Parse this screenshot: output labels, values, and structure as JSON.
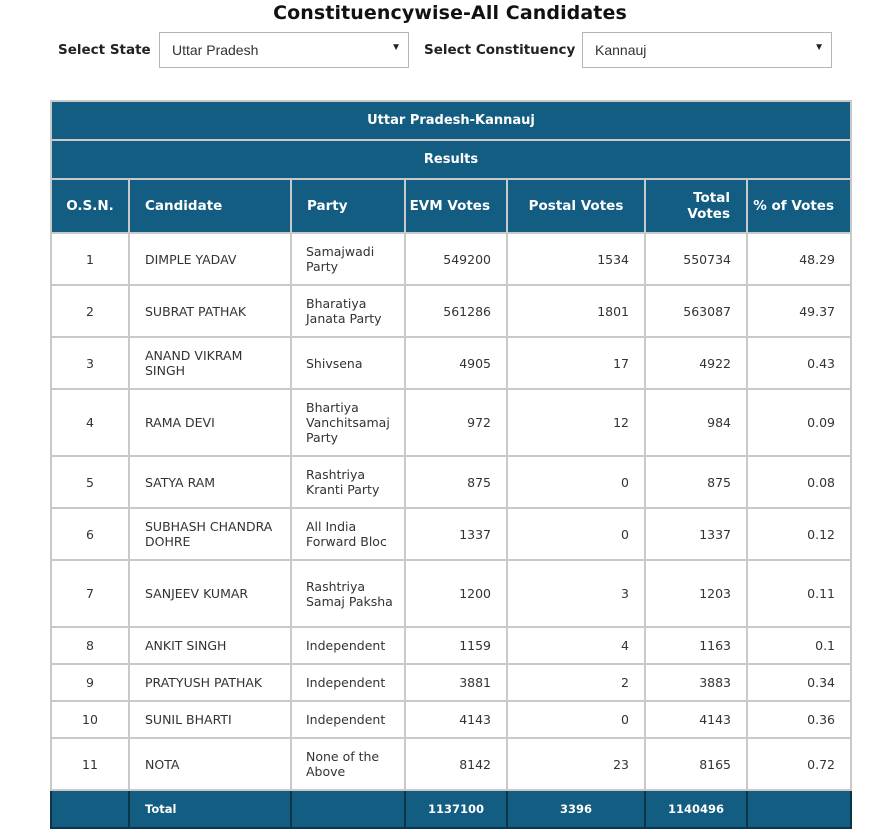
{
  "page": {
    "title": "Constituencywise-All Candidates"
  },
  "filters": {
    "state_label": "Select State",
    "state_value": "Uttar Pradesh",
    "constituency_label": "Select Constituency",
    "constituency_value": "Kannauj"
  },
  "table": {
    "title": "Uttar Pradesh-Kannauj",
    "subtitle": "Results",
    "headers": [
      "O.S.N.",
      "Candidate",
      "Party",
      "EVM Votes",
      "Postal Votes",
      "Total Votes",
      "% of Votes"
    ],
    "rows": [
      {
        "osn": "1",
        "candidate": "DIMPLE YADAV",
        "party": "Samajwadi Party",
        "evm": "549200",
        "postal": "1534",
        "total": "550734",
        "pct": "48.29"
      },
      {
        "osn": "2",
        "candidate": "SUBRAT PATHAK",
        "party": "Bharatiya Janata Party",
        "evm": "561286",
        "postal": "1801",
        "total": "563087",
        "pct": "49.37"
      },
      {
        "osn": "3",
        "candidate": "ANAND VIKRAM SINGH",
        "party": "Shivsena",
        "evm": "4905",
        "postal": "17",
        "total": "4922",
        "pct": "0.43"
      },
      {
        "osn": "4",
        "candidate": "RAMA DEVI",
        "party": "Bhartiya Vanchitsamaj Party",
        "evm": "972",
        "postal": "12",
        "total": "984",
        "pct": "0.09"
      },
      {
        "osn": "5",
        "candidate": "SATYA RAM",
        "party": "Rashtriya Kranti Party",
        "evm": "875",
        "postal": "0",
        "total": "875",
        "pct": "0.08"
      },
      {
        "osn": "6",
        "candidate": "SUBHASH CHANDRA DOHRE",
        "party": "All India Forward Bloc",
        "evm": "1337",
        "postal": "0",
        "total": "1337",
        "pct": "0.12"
      },
      {
        "osn": "7",
        "candidate": "SANJEEV KUMAR",
        "party": "Rashtriya Samaj Paksha",
        "evm": "1200",
        "postal": "3",
        "total": "1203",
        "pct": "0.11"
      },
      {
        "osn": "8",
        "candidate": "ANKIT SINGH",
        "party": "Independent",
        "evm": "1159",
        "postal": "4",
        "total": "1163",
        "pct": "0.1"
      },
      {
        "osn": "9",
        "candidate": "PRATYUSH PATHAK",
        "party": "Independent",
        "evm": "3881",
        "postal": "2",
        "total": "3883",
        "pct": "0.34"
      },
      {
        "osn": "10",
        "candidate": "SUNIL BHARTI",
        "party": "Independent",
        "evm": "4143",
        "postal": "0",
        "total": "4143",
        "pct": "0.36"
      },
      {
        "osn": "11",
        "candidate": "NOTA",
        "party": "None of the Above",
        "evm": "8142",
        "postal": "23",
        "total": "8165",
        "pct": "0.72"
      }
    ],
    "totals": {
      "label": "Total",
      "evm": "1137100",
      "postal": "3396",
      "total": "1140496"
    }
  },
  "colors": {
    "header_bg": "#135c82",
    "header_text": "#ffffff",
    "border": "#c9c9c9"
  },
  "icons": {
    "select_caret": "caret-down-icon"
  }
}
